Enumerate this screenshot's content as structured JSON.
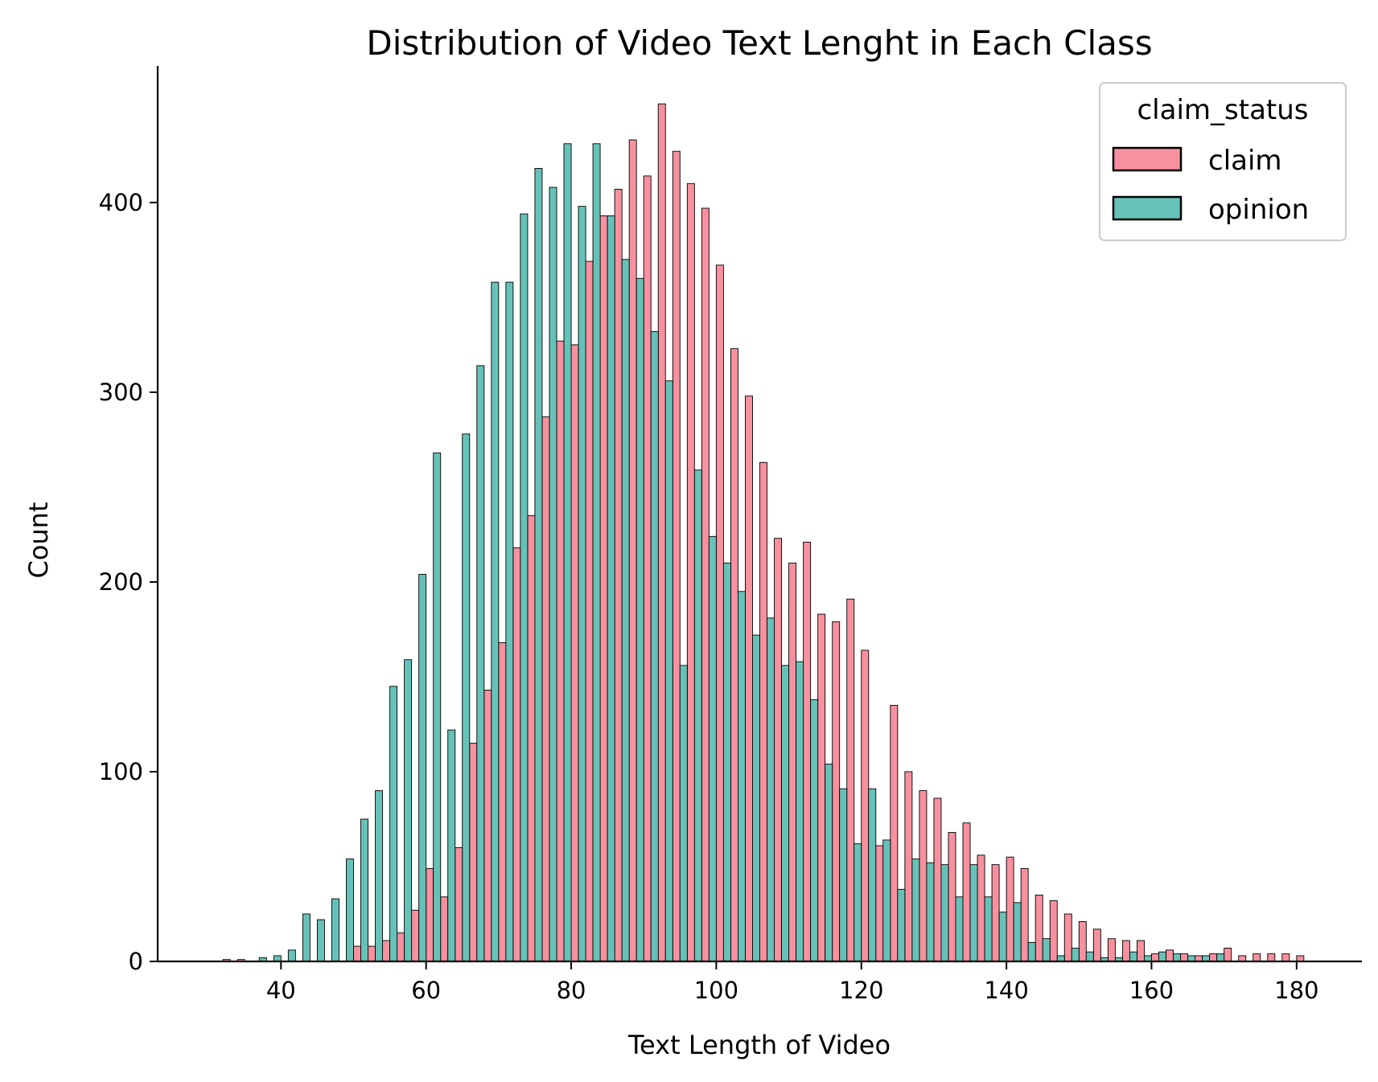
{
  "chart_data": {
    "type": "bar",
    "title": "Distribution of Video Text Lenght in Each Class",
    "xlabel": "Text Length of Video",
    "ylabel": "Count",
    "xlim": [
      23,
      189
    ],
    "ylim": [
      0,
      472
    ],
    "xticks": [
      40,
      60,
      80,
      100,
      120,
      140,
      160,
      180
    ],
    "yticks": [
      0,
      100,
      200,
      300,
      400
    ],
    "bin_width": 2,
    "grid": false,
    "legend": {
      "title": "claim_status",
      "placement": "top-right",
      "entries": [
        {
          "name": "claim",
          "color": "#f7909f"
        },
        {
          "name": "opinion",
          "color": "#66c2b8"
        }
      ]
    },
    "x": [
      32,
      34,
      36,
      38,
      40,
      42,
      44,
      46,
      48,
      50,
      52,
      54,
      56,
      58,
      60,
      62,
      64,
      66,
      68,
      70,
      72,
      74,
      76,
      78,
      80,
      82,
      84,
      86,
      88,
      90,
      92,
      94,
      96,
      98,
      100,
      102,
      104,
      106,
      108,
      110,
      112,
      114,
      116,
      118,
      120,
      122,
      124,
      126,
      128,
      130,
      132,
      134,
      136,
      138,
      140,
      142,
      144,
      146,
      148,
      150,
      152,
      154,
      156,
      158,
      160,
      162,
      164,
      166,
      168,
      170,
      172,
      174,
      176,
      178,
      180
    ],
    "series": [
      {
        "name": "claim",
        "color": "#f7909f",
        "values": [
          1,
          1,
          0,
          0,
          0,
          0,
          0,
          0,
          0,
          8,
          8,
          11,
          15,
          27,
          49,
          34,
          60,
          115,
          143,
          168,
          218,
          235,
          287,
          327,
          325,
          369,
          393,
          407,
          433,
          414,
          452,
          427,
          410,
          397,
          367,
          323,
          298,
          263,
          223,
          210,
          221,
          183,
          179,
          191,
          164,
          61,
          135,
          100,
          90,
          86,
          68,
          73,
          56,
          51,
          55,
          49,
          35,
          32,
          25,
          21,
          17,
          12,
          11,
          11,
          4,
          6,
          4,
          3,
          4,
          7,
          3,
          4,
          4,
          4,
          3
        ]
      },
      {
        "name": "opinion",
        "color": "#66c2b8",
        "values": [
          0,
          0,
          2,
          3,
          6,
          25,
          22,
          33,
          54,
          75,
          90,
          145,
          159,
          204,
          268,
          122,
          278,
          314,
          358,
          358,
          394,
          418,
          408,
          431,
          398,
          431,
          393,
          370,
          360,
          332,
          306,
          156,
          259,
          224,
          210,
          195,
          172,
          181,
          156,
          158,
          138,
          104,
          91,
          62,
          91,
          64,
          38,
          54,
          52,
          51,
          34,
          51,
          34,
          26,
          31,
          10,
          12,
          3,
          7,
          5,
          2,
          2,
          5,
          3,
          5,
          4,
          3,
          3,
          4,
          0,
          0,
          0,
          0,
          0,
          0
        ]
      }
    ]
  }
}
